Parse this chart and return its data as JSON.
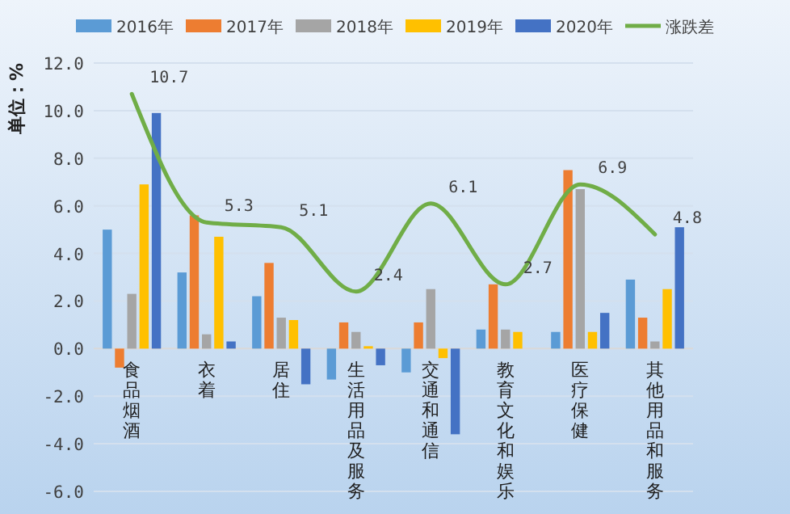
{
  "chart_data": {
    "type": "bar",
    "ylabel": "单位：%",
    "categories": [
      "食品烟酒",
      "衣着",
      "居住",
      "生活用品及服务",
      "交通和通信",
      "教育文化和娱乐",
      "医疗保健",
      "其他用品和服务"
    ],
    "series": [
      {
        "name": "2016年",
        "color": "#5b9bd5",
        "values": [
          5.0,
          3.2,
          2.2,
          -1.3,
          -1.0,
          0.8,
          0.7,
          2.9
        ]
      },
      {
        "name": "2017年",
        "color": "#ed7d31",
        "values": [
          -0.8,
          5.6,
          3.6,
          1.1,
          1.1,
          2.7,
          7.5,
          1.3
        ]
      },
      {
        "name": "2018年",
        "color": "#a5a5a5",
        "values": [
          2.3,
          0.6,
          1.3,
          0.7,
          2.5,
          0.8,
          6.7,
          0.3
        ]
      },
      {
        "name": "2019年",
        "color": "#ffc000",
        "values": [
          6.9,
          4.7,
          1.2,
          0.1,
          -0.4,
          0.7,
          0.7,
          2.5
        ]
      },
      {
        "name": "2020年",
        "color": "#4472c4",
        "values": [
          9.9,
          0.3,
          -1.5,
          -0.7,
          -3.6,
          null,
          1.5,
          5.1
        ]
      },
      {
        "name": "涨跌差",
        "type": "line",
        "color": "#70ad47",
        "values": [
          10.7,
          5.3,
          5.1,
          2.4,
          6.1,
          2.7,
          6.9,
          4.8
        ],
        "value_labels": [
          "10.7",
          "5.3",
          "5.1",
          "2.4",
          "6.1",
          "2.7",
          "6.9",
          "4.8"
        ]
      }
    ],
    "ylim": [
      -6,
      12
    ],
    "yticks": [
      {
        "value": -6,
        "label": "-6.0"
      },
      {
        "value": -4,
        "label": "-4.0"
      },
      {
        "value": -2,
        "label": "-2.0"
      },
      {
        "value": 0,
        "label": "0.0"
      },
      {
        "value": 2,
        "label": "2.0"
      },
      {
        "value": 4,
        "label": "4.0"
      },
      {
        "value": 6,
        "label": "6.0"
      },
      {
        "value": 8,
        "label": "8.0"
      },
      {
        "value": 10,
        "label": "10.0"
      },
      {
        "value": 12,
        "label": "12.0"
      }
    ],
    "grid": "y",
    "legend": "top",
    "marker": "none"
  }
}
